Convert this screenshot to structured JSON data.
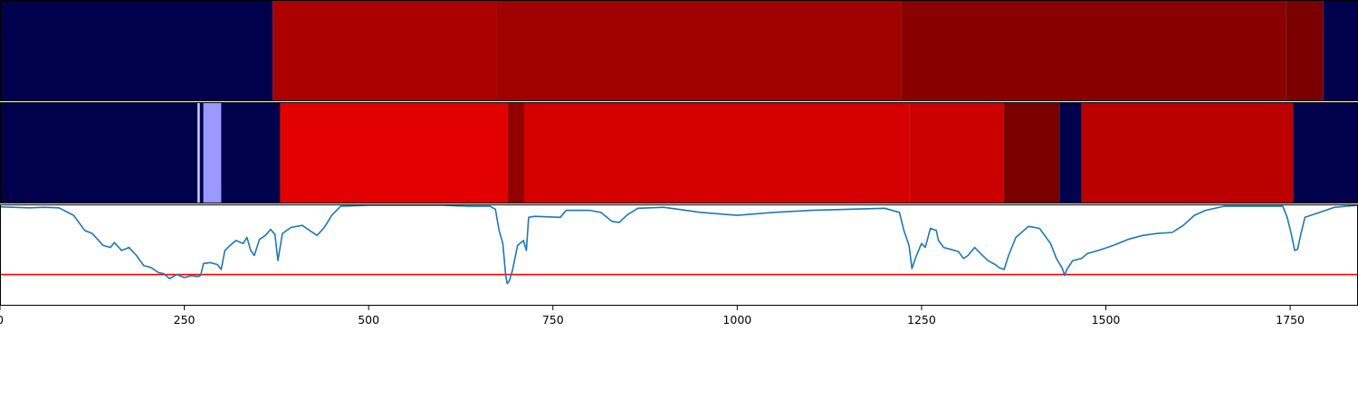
{
  "chart_data": {
    "type": "heatmap",
    "xlim": [
      0,
      1842
    ],
    "xticks": [
      {
        "value": 0,
        "label": "0"
      },
      {
        "value": 250,
        "label": "250"
      },
      {
        "value": 500,
        "label": "500"
      },
      {
        "value": 750,
        "label": "750"
      },
      {
        "value": 1000,
        "label": "1000"
      },
      {
        "value": 1250,
        "label": "1250"
      },
      {
        "value": 1500,
        "label": "1500"
      },
      {
        "value": 1750,
        "label": "1750"
      }
    ],
    "strip_top": {
      "segments": [
        {
          "start": 0,
          "end": 370,
          "color": "#00004c"
        },
        {
          "start": 370,
          "end": 673,
          "color": "#ab0000"
        },
        {
          "start": 673,
          "end": 1223,
          "color": "#9f0000"
        },
        {
          "start": 1223,
          "end": 1744,
          "color": "#890000"
        },
        {
          "start": 1744,
          "end": 1795,
          "color": "#7a0000"
        },
        {
          "start": 1795,
          "end": 1842,
          "color": "#00004c"
        }
      ]
    },
    "strip_middle": {
      "segments": [
        {
          "start": 0,
          "end": 268,
          "color": "#00004c"
        },
        {
          "start": 268,
          "end": 271,
          "color": "#c8c8ff"
        },
        {
          "start": 271,
          "end": 276,
          "color": "#00004c"
        },
        {
          "start": 276,
          "end": 300,
          "color": "#9999ff"
        },
        {
          "start": 300,
          "end": 380,
          "color": "#00004c"
        },
        {
          "start": 380,
          "end": 689,
          "color": "#e20000"
        },
        {
          "start": 689,
          "end": 711,
          "color": "#930000"
        },
        {
          "start": 711,
          "end": 1234,
          "color": "#d40000"
        },
        {
          "start": 1234,
          "end": 1361,
          "color": "#cb0000"
        },
        {
          "start": 1361,
          "end": 1437,
          "color": "#7a0000"
        },
        {
          "start": 1437,
          "end": 1467,
          "color": "#00004c"
        },
        {
          "start": 1467,
          "end": 1754,
          "color": "#bb0000"
        },
        {
          "start": 1754,
          "end": 1842,
          "color": "#00004c"
        }
      ]
    },
    "line_panel": {
      "ylim": [
        0,
        1
      ],
      "threshold": {
        "value": 0.31,
        "color": "#ff0000"
      },
      "series_color": "#1f77b4",
      "points": [
        [
          0,
          0.985
        ],
        [
          40,
          0.975
        ],
        [
          60,
          0.98
        ],
        [
          80,
          0.975
        ],
        [
          100,
          0.9
        ],
        [
          115,
          0.75
        ],
        [
          125,
          0.72
        ],
        [
          140,
          0.6
        ],
        [
          150,
          0.58
        ],
        [
          155,
          0.63
        ],
        [
          165,
          0.55
        ],
        [
          175,
          0.58
        ],
        [
          185,
          0.5
        ],
        [
          195,
          0.4
        ],
        [
          205,
          0.38
        ],
        [
          215,
          0.33
        ],
        [
          222,
          0.32
        ],
        [
          230,
          0.27
        ],
        [
          240,
          0.31
        ],
        [
          250,
          0.28
        ],
        [
          260,
          0.3
        ],
        [
          268,
          0.29
        ],
        [
          272,
          0.3
        ],
        [
          276,
          0.42
        ],
        [
          285,
          0.43
        ],
        [
          295,
          0.41
        ],
        [
          300,
          0.36
        ],
        [
          305,
          0.55
        ],
        [
          312,
          0.6
        ],
        [
          320,
          0.65
        ],
        [
          330,
          0.62
        ],
        [
          335,
          0.68
        ],
        [
          340,
          0.55
        ],
        [
          345,
          0.5
        ],
        [
          352,
          0.66
        ],
        [
          360,
          0.7
        ],
        [
          367,
          0.76
        ],
        [
          373,
          0.71
        ],
        [
          377,
          0.45
        ],
        [
          383,
          0.72
        ],
        [
          395,
          0.78
        ],
        [
          410,
          0.8
        ],
        [
          420,
          0.75
        ],
        [
          430,
          0.7
        ],
        [
          440,
          0.78
        ],
        [
          450,
          0.9
        ],
        [
          462,
          0.99
        ],
        [
          500,
          1.0
        ],
        [
          600,
          1.0
        ],
        [
          635,
          0.99
        ],
        [
          665,
          0.99
        ],
        [
          672,
          0.96
        ],
        [
          677,
          0.75
        ],
        [
          682,
          0.62
        ],
        [
          686,
          0.3
        ],
        [
          688,
          0.22
        ],
        [
          691,
          0.25
        ],
        [
          695,
          0.35
        ],
        [
          702,
          0.6
        ],
        [
          710,
          0.65
        ],
        [
          714,
          0.55
        ],
        [
          717,
          0.88
        ],
        [
          725,
          0.89
        ],
        [
          760,
          0.88
        ],
        [
          768,
          0.95
        ],
        [
          800,
          0.95
        ],
        [
          815,
          0.93
        ],
        [
          830,
          0.84
        ],
        [
          840,
          0.83
        ],
        [
          850,
          0.9
        ],
        [
          865,
          0.97
        ],
        [
          900,
          0.98
        ],
        [
          950,
          0.93
        ],
        [
          1000,
          0.9
        ],
        [
          1050,
          0.93
        ],
        [
          1100,
          0.95
        ],
        [
          1150,
          0.96
        ],
        [
          1200,
          0.97
        ],
        [
          1220,
          0.93
        ],
        [
          1226,
          0.75
        ],
        [
          1233,
          0.6
        ],
        [
          1237,
          0.37
        ],
        [
          1242,
          0.48
        ],
        [
          1250,
          0.62
        ],
        [
          1255,
          0.58
        ],
        [
          1262,
          0.77
        ],
        [
          1270,
          0.75
        ],
        [
          1273,
          0.65
        ],
        [
          1280,
          0.58
        ],
        [
          1290,
          0.56
        ],
        [
          1300,
          0.54
        ],
        [
          1307,
          0.47
        ],
        [
          1313,
          0.5
        ],
        [
          1322,
          0.58
        ],
        [
          1330,
          0.52
        ],
        [
          1340,
          0.45
        ],
        [
          1350,
          0.41
        ],
        [
          1355,
          0.38
        ],
        [
          1362,
          0.36
        ],
        [
          1368,
          0.5
        ],
        [
          1378,
          0.68
        ],
        [
          1395,
          0.79
        ],
        [
          1410,
          0.77
        ],
        [
          1425,
          0.62
        ],
        [
          1433,
          0.47
        ],
        [
          1441,
          0.37
        ],
        [
          1444,
          0.3
        ],
        [
          1447,
          0.36
        ],
        [
          1455,
          0.45
        ],
        [
          1467,
          0.47
        ],
        [
          1475,
          0.52
        ],
        [
          1490,
          0.55
        ],
        [
          1510,
          0.6
        ],
        [
          1530,
          0.66
        ],
        [
          1550,
          0.7
        ],
        [
          1570,
          0.72
        ],
        [
          1590,
          0.73
        ],
        [
          1605,
          0.8
        ],
        [
          1620,
          0.9
        ],
        [
          1635,
          0.95
        ],
        [
          1660,
          0.99
        ],
        [
          1740,
          0.99
        ],
        [
          1746,
          0.88
        ],
        [
          1752,
          0.7
        ],
        [
          1756,
          0.55
        ],
        [
          1760,
          0.56
        ],
        [
          1765,
          0.73
        ],
        [
          1770,
          0.88
        ],
        [
          1790,
          0.93
        ],
        [
          1810,
          0.98
        ],
        [
          1842,
          1.0
        ]
      ]
    }
  }
}
